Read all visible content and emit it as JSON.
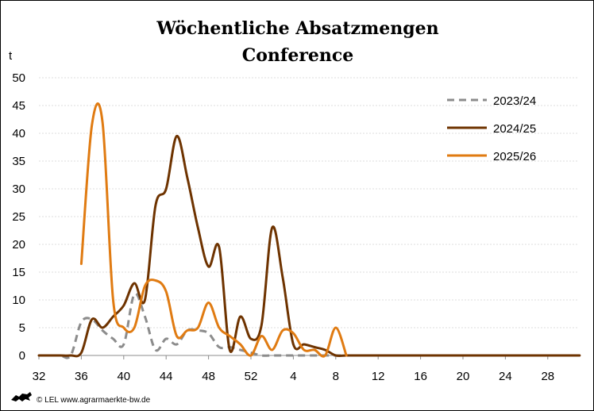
{
  "chart_data": {
    "type": "line",
    "title": "Wöchentliche Absatzmengen",
    "subtitle": "Conference",
    "ylabel": "t",
    "xlabel": "",
    "ylim": [
      0,
      50
    ],
    "y_ticks": [
      "0",
      "5",
      "10",
      "15",
      "20",
      "25",
      "30",
      "35",
      "40",
      "45",
      "50"
    ],
    "x_tick_labels": [
      "32",
      "36",
      "40",
      "44",
      "48",
      "52",
      "4",
      "8",
      "12",
      "16",
      "20",
      "24",
      "28"
    ],
    "grid": "horizontal",
    "legend_position": "top-right",
    "weeks": [
      "32",
      "33",
      "34",
      "35",
      "36",
      "37",
      "38",
      "39",
      "40",
      "41",
      "42",
      "43",
      "44",
      "45",
      "46",
      "47",
      "48",
      "49",
      "50",
      "51",
      "52",
      "1",
      "2",
      "3",
      "4",
      "5",
      "6",
      "7",
      "8",
      "9",
      "10",
      "11",
      "12",
      "13",
      "14",
      "15",
      "16",
      "17",
      "18",
      "19",
      "20",
      "21",
      "22",
      "23",
      "24",
      "25",
      "26",
      "27",
      "28",
      "29",
      "30",
      "31"
    ],
    "series": [
      {
        "name": "2023/24",
        "color": "#8c8c8c",
        "dashed": true,
        "values": [
          0,
          0,
          0,
          0,
          6,
          6.5,
          4.5,
          3,
          2,
          11,
          7,
          1,
          3,
          2,
          4.5,
          4.5,
          4,
          1.5,
          1.5,
          1,
          0.5,
          0,
          0,
          0,
          0,
          0,
          0,
          0,
          0,
          0,
          0,
          0,
          0,
          0,
          0,
          0,
          0,
          0,
          0,
          0,
          0,
          0,
          0,
          0,
          0,
          0,
          0,
          0,
          0,
          0,
          0,
          0
        ]
      },
      {
        "name": "2024/25",
        "color": "#6e3300",
        "dashed": false,
        "values": [
          0,
          0,
          0,
          0,
          0.5,
          6.5,
          5,
          7,
          9,
          13,
          10,
          27,
          30,
          39.5,
          32,
          23,
          16,
          19.5,
          1,
          7,
          3,
          5.5,
          23,
          14,
          2,
          2,
          1.5,
          1,
          0,
          0,
          0,
          0,
          0,
          0,
          0,
          0,
          0,
          0,
          0,
          0,
          0,
          0,
          0,
          0,
          0,
          0,
          0,
          0,
          0,
          0,
          0,
          0
        ]
      },
      {
        "name": "2025/26",
        "color": "#e07b12",
        "dashed": false,
        "values": [
          null,
          null,
          null,
          null,
          16.5,
          41.5,
          42,
          10,
          5,
          5,
          12.5,
          13.5,
          11.5,
          3.5,
          4.5,
          5,
          9.5,
          5,
          3.5,
          2,
          0,
          3.5,
          1,
          4.5,
          4,
          1,
          1,
          0,
          5,
          0
        ]
      }
    ]
  },
  "footer": {
    "logo": "lion-logo",
    "text": "© LEL www.agrarmaerkte-bw.de"
  }
}
